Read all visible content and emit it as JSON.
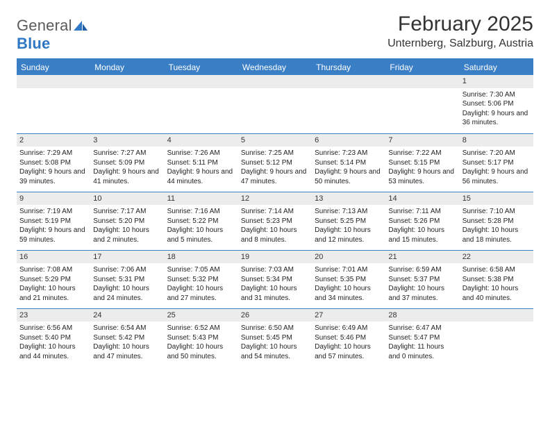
{
  "logo": {
    "word1": "General",
    "word2": "Blue"
  },
  "title": "February 2025",
  "location": "Unternberg, Salzburg, Austria",
  "colors": {
    "header_bg": "#3a7fc5",
    "header_text": "#ffffff",
    "daynum_bg": "#ececec",
    "rule": "#3a7fc5",
    "logo_gray": "#5a5a5a",
    "logo_blue": "#2f78c4"
  },
  "day_headers": [
    "Sunday",
    "Monday",
    "Tuesday",
    "Wednesday",
    "Thursday",
    "Friday",
    "Saturday"
  ],
  "weeks": [
    [
      {
        "n": "",
        "lines": []
      },
      {
        "n": "",
        "lines": []
      },
      {
        "n": "",
        "lines": []
      },
      {
        "n": "",
        "lines": []
      },
      {
        "n": "",
        "lines": []
      },
      {
        "n": "",
        "lines": []
      },
      {
        "n": "1",
        "lines": [
          "Sunrise: 7:30 AM",
          "Sunset: 5:06 PM",
          "Daylight: 9 hours and 36 minutes."
        ]
      }
    ],
    [
      {
        "n": "2",
        "lines": [
          "Sunrise: 7:29 AM",
          "Sunset: 5:08 PM",
          "Daylight: 9 hours and 39 minutes."
        ]
      },
      {
        "n": "3",
        "lines": [
          "Sunrise: 7:27 AM",
          "Sunset: 5:09 PM",
          "Daylight: 9 hours and 41 minutes."
        ]
      },
      {
        "n": "4",
        "lines": [
          "Sunrise: 7:26 AM",
          "Sunset: 5:11 PM",
          "Daylight: 9 hours and 44 minutes."
        ]
      },
      {
        "n": "5",
        "lines": [
          "Sunrise: 7:25 AM",
          "Sunset: 5:12 PM",
          "Daylight: 9 hours and 47 minutes."
        ]
      },
      {
        "n": "6",
        "lines": [
          "Sunrise: 7:23 AM",
          "Sunset: 5:14 PM",
          "Daylight: 9 hours and 50 minutes."
        ]
      },
      {
        "n": "7",
        "lines": [
          "Sunrise: 7:22 AM",
          "Sunset: 5:15 PM",
          "Daylight: 9 hours and 53 minutes."
        ]
      },
      {
        "n": "8",
        "lines": [
          "Sunrise: 7:20 AM",
          "Sunset: 5:17 PM",
          "Daylight: 9 hours and 56 minutes."
        ]
      }
    ],
    [
      {
        "n": "9",
        "lines": [
          "Sunrise: 7:19 AM",
          "Sunset: 5:19 PM",
          "Daylight: 9 hours and 59 minutes."
        ]
      },
      {
        "n": "10",
        "lines": [
          "Sunrise: 7:17 AM",
          "Sunset: 5:20 PM",
          "Daylight: 10 hours and 2 minutes."
        ]
      },
      {
        "n": "11",
        "lines": [
          "Sunrise: 7:16 AM",
          "Sunset: 5:22 PM",
          "Daylight: 10 hours and 5 minutes."
        ]
      },
      {
        "n": "12",
        "lines": [
          "Sunrise: 7:14 AM",
          "Sunset: 5:23 PM",
          "Daylight: 10 hours and 8 minutes."
        ]
      },
      {
        "n": "13",
        "lines": [
          "Sunrise: 7:13 AM",
          "Sunset: 5:25 PM",
          "Daylight: 10 hours and 12 minutes."
        ]
      },
      {
        "n": "14",
        "lines": [
          "Sunrise: 7:11 AM",
          "Sunset: 5:26 PM",
          "Daylight: 10 hours and 15 minutes."
        ]
      },
      {
        "n": "15",
        "lines": [
          "Sunrise: 7:10 AM",
          "Sunset: 5:28 PM",
          "Daylight: 10 hours and 18 minutes."
        ]
      }
    ],
    [
      {
        "n": "16",
        "lines": [
          "Sunrise: 7:08 AM",
          "Sunset: 5:29 PM",
          "Daylight: 10 hours and 21 minutes."
        ]
      },
      {
        "n": "17",
        "lines": [
          "Sunrise: 7:06 AM",
          "Sunset: 5:31 PM",
          "Daylight: 10 hours and 24 minutes."
        ]
      },
      {
        "n": "18",
        "lines": [
          "Sunrise: 7:05 AM",
          "Sunset: 5:32 PM",
          "Daylight: 10 hours and 27 minutes."
        ]
      },
      {
        "n": "19",
        "lines": [
          "Sunrise: 7:03 AM",
          "Sunset: 5:34 PM",
          "Daylight: 10 hours and 31 minutes."
        ]
      },
      {
        "n": "20",
        "lines": [
          "Sunrise: 7:01 AM",
          "Sunset: 5:35 PM",
          "Daylight: 10 hours and 34 minutes."
        ]
      },
      {
        "n": "21",
        "lines": [
          "Sunrise: 6:59 AM",
          "Sunset: 5:37 PM",
          "Daylight: 10 hours and 37 minutes."
        ]
      },
      {
        "n": "22",
        "lines": [
          "Sunrise: 6:58 AM",
          "Sunset: 5:38 PM",
          "Daylight: 10 hours and 40 minutes."
        ]
      }
    ],
    [
      {
        "n": "23",
        "lines": [
          "Sunrise: 6:56 AM",
          "Sunset: 5:40 PM",
          "Daylight: 10 hours and 44 minutes."
        ]
      },
      {
        "n": "24",
        "lines": [
          "Sunrise: 6:54 AM",
          "Sunset: 5:42 PM",
          "Daylight: 10 hours and 47 minutes."
        ]
      },
      {
        "n": "25",
        "lines": [
          "Sunrise: 6:52 AM",
          "Sunset: 5:43 PM",
          "Daylight: 10 hours and 50 minutes."
        ]
      },
      {
        "n": "26",
        "lines": [
          "Sunrise: 6:50 AM",
          "Sunset: 5:45 PM",
          "Daylight: 10 hours and 54 minutes."
        ]
      },
      {
        "n": "27",
        "lines": [
          "Sunrise: 6:49 AM",
          "Sunset: 5:46 PM",
          "Daylight: 10 hours and 57 minutes."
        ]
      },
      {
        "n": "28",
        "lines": [
          "Sunrise: 6:47 AM",
          "Sunset: 5:47 PM",
          "Daylight: 11 hours and 0 minutes."
        ]
      },
      {
        "n": "",
        "lines": []
      }
    ]
  ]
}
